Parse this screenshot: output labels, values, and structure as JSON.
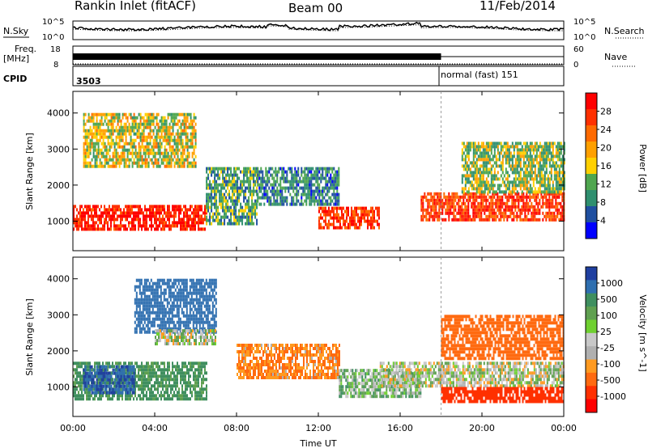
{
  "header": {
    "station": "Rankin Inlet (fitACF)",
    "beam": "Beam 00",
    "date": "11/Feb/2014"
  },
  "noise_panel": {
    "left_label": "N.Sky",
    "right_label": "N.Search",
    "left_ticks": [
      "10^5",
      "10^0"
    ],
    "right_ticks": [
      "10^5",
      "10^0"
    ]
  },
  "freq_panel": {
    "label_line1": "Freq.",
    "label_line2": "[MHz]",
    "right_label": "Nave",
    "left_ticks": [
      "18",
      "8"
    ],
    "right_ticks": [
      "60",
      "0"
    ]
  },
  "cpid_panel": {
    "label": "CPID",
    "segments": [
      {
        "start_hour": 0,
        "text": "3503"
      },
      {
        "start_hour": 18,
        "text": "normal (fast) 151"
      }
    ]
  },
  "x_axis": {
    "title": "Time UT",
    "ticks": [
      "00:00",
      "04:00",
      "08:00",
      "12:00",
      "16:00",
      "20:00",
      "00:00"
    ],
    "range_hours": [
      0,
      24
    ]
  },
  "power_panel": {
    "ylabel": "Slant Range [km]",
    "yticks": [
      1000,
      2000,
      3000,
      4000
    ],
    "ylim": [
      180,
      4600
    ],
    "colorbar_title": "Power [dB]",
    "colorbar_ticks": [
      "28",
      "24",
      "20",
      "16",
      "12",
      "8",
      "4"
    ],
    "colors": [
      "#ff0000",
      "#ff3000",
      "#ff6a00",
      "#ffa000",
      "#ffd000",
      "#4fa64f",
      "#2f8f6f",
      "#1f4fa0",
      "#0000ff"
    ]
  },
  "velocity_panel": {
    "ylabel": "Slant Range [km]",
    "yticks": [
      1000,
      2000,
      3000,
      4000
    ],
    "ylim": [
      180,
      4600
    ],
    "colorbar_title": "Velocity [m s^-1]",
    "colorbar_ticks": [
      "1000",
      "500",
      "100",
      "25",
      "-25",
      "-100",
      "-500",
      "-1000"
    ],
    "colors": [
      "#1f3fa0",
      "#2f6fb0",
      "#3f8f5f",
      "#5fa050",
      "#6fd030",
      "#c8c8c8",
      "#b0b0b0",
      "#ff9a20",
      "#ff6a10",
      "#ff3000",
      "#ff0000"
    ]
  },
  "chart_data": [
    {
      "type": "heatmap",
      "title": "Power",
      "xlabel": "Time UT",
      "ylabel": "Slant Range [km]",
      "colorbar": "Power [dB]",
      "xlim": [
        0,
        24
      ],
      "ylim": [
        180,
        4600
      ],
      "regions": [
        {
          "t": [
            0,
            6.5
          ],
          "r": [
            750,
            1450
          ],
          "value_db": 26
        },
        {
          "t": [
            6.5,
            9
          ],
          "r": [
            900,
            2500
          ],
          "value_db": 10
        },
        {
          "t": [
            9,
            13
          ],
          "r": [
            1500,
            2500
          ],
          "value_db": 8
        },
        {
          "t": [
            12,
            15
          ],
          "r": [
            800,
            1400
          ],
          "value_db": 24
        },
        {
          "t": [
            17,
            24
          ],
          "r": [
            1000,
            1800
          ],
          "value_db": 24
        },
        {
          "t": [
            19,
            24
          ],
          "r": [
            1800,
            3200
          ],
          "value_db": 12
        },
        {
          "t": [
            0.5,
            6
          ],
          "r": [
            2500,
            4000
          ],
          "value_db": 14
        }
      ]
    },
    {
      "type": "heatmap",
      "title": "Velocity",
      "xlabel": "Time UT",
      "ylabel": "Slant Range [km]",
      "colorbar": "Velocity [m s^-1]",
      "xlim": [
        0,
        24
      ],
      "ylim": [
        180,
        4600
      ],
      "regions": [
        {
          "t": [
            0,
            6.5
          ],
          "r": [
            700,
            1700
          ],
          "value_ms": 150
        },
        {
          "t": [
            0.5,
            3
          ],
          "r": [
            800,
            1600
          ],
          "value_ms": 700
        },
        {
          "t": [
            3,
            7
          ],
          "r": [
            2500,
            4000
          ],
          "value_ms": 500
        },
        {
          "t": [
            4,
            7
          ],
          "r": [
            2200,
            2600
          ],
          "value_ms": 0
        },
        {
          "t": [
            8,
            13
          ],
          "r": [
            1300,
            2200
          ],
          "value_ms": -150
        },
        {
          "t": [
            13,
            17
          ],
          "r": [
            700,
            1500
          ],
          "value_ms": 50
        },
        {
          "t": [
            15,
            24
          ],
          "r": [
            1000,
            1700
          ],
          "value_ms": 0
        },
        {
          "t": [
            18,
            24
          ],
          "r": [
            600,
            1000
          ],
          "value_ms": -700
        },
        {
          "t": [
            18,
            24
          ],
          "r": [
            1800,
            3000
          ],
          "value_ms": -300
        }
      ]
    }
  ]
}
